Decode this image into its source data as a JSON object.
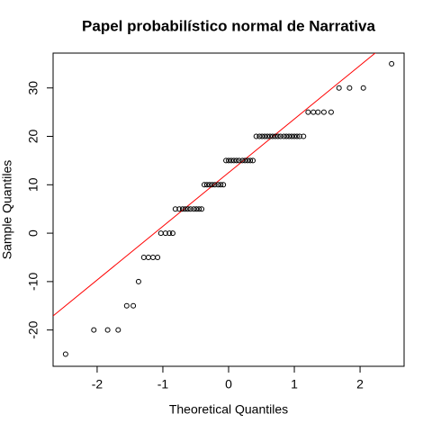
{
  "chart_data": {
    "type": "scatter",
    "title": "Papel probabilístico normal de Narrativa",
    "x_label": "Theoretical Quantiles",
    "y_label": "Sample Quantiles",
    "x": [
      -2.48,
      -2.05,
      -1.84,
      -1.68,
      -1.55,
      -1.45,
      -1.37,
      -1.29,
      -1.22,
      -1.15,
      -1.08,
      -1.03,
      -0.96,
      -0.9,
      -0.85,
      -0.81,
      -0.75,
      -0.7,
      -0.66,
      -0.62,
      -0.58,
      -0.53,
      -0.49,
      -0.45,
      -0.41,
      -0.37,
      -0.33,
      -0.29,
      -0.25,
      -0.21,
      -0.16,
      -0.12,
      -0.08,
      -0.04,
      0,
      0.04,
      0.08,
      0.12,
      0.16,
      0.21,
      0.25,
      0.29,
      0.33,
      0.37,
      0.42,
      0.47,
      0.51,
      0.55,
      0.59,
      0.63,
      0.67,
      0.71,
      0.75,
      0.79,
      0.84,
      0.88,
      0.92,
      0.96,
      1.0,
      1.04,
      1.08,
      1.14,
      1.21,
      1.29,
      1.36,
      1.45,
      1.56,
      1.68,
      1.84,
      2.05,
      2.48
    ],
    "values": [
      -25,
      -20,
      -20,
      -20,
      -15,
      -15,
      -10,
      -5,
      -5,
      -5,
      -5,
      0,
      0,
      0,
      0,
      5,
      5,
      5,
      5,
      5,
      5,
      5,
      5,
      5,
      5,
      10,
      10,
      10,
      10,
      10,
      10,
      10,
      10,
      15,
      15,
      15,
      15,
      15,
      15,
      15,
      15,
      15,
      15,
      15,
      20,
      20,
      20,
      20,
      20,
      20,
      20,
      20,
      20,
      20,
      20,
      20,
      20,
      20,
      20,
      20,
      20,
      20,
      25,
      25,
      25,
      25,
      25,
      30,
      30,
      30,
      35
    ],
    "color": "#000000",
    "qqline": {
      "intercept": 12.5,
      "slope": 11.08,
      "color": "#ff0000"
    },
    "xlim": [
      -2.67,
      2.67
    ],
    "ylim": [
      -27.5,
      37.2
    ],
    "xticks": [
      -2,
      -1,
      0,
      1,
      2
    ],
    "yticks": [
      -20,
      -10,
      0,
      10,
      20,
      30
    ]
  }
}
